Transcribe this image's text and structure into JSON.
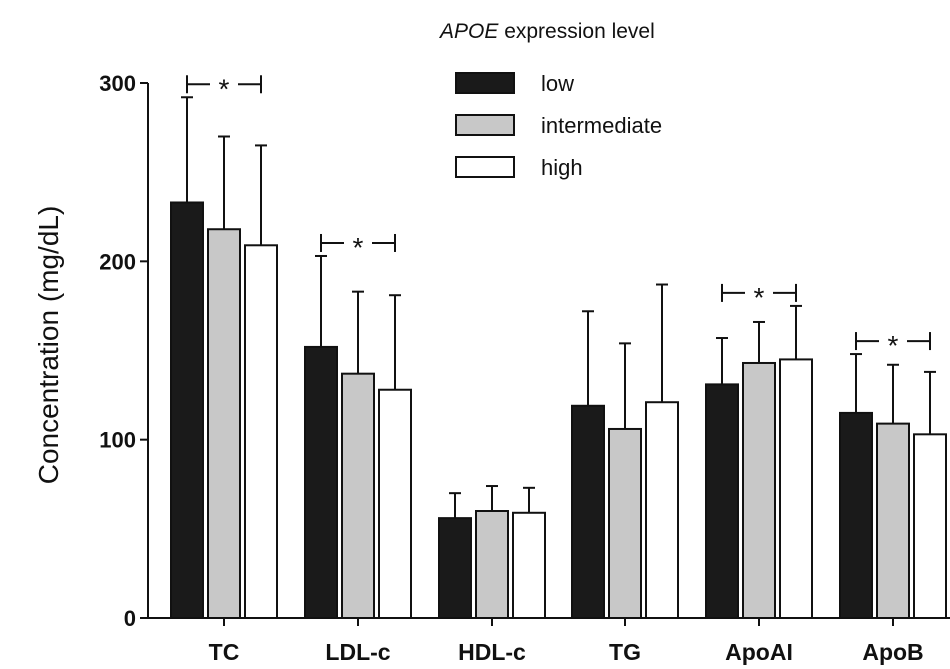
{
  "chart_data": {
    "type": "bar",
    "ylabel": "Concentration (mg/dL)",
    "ylim": [
      0,
      300
    ],
    "yticks": [
      0,
      100,
      200,
      300
    ],
    "grid": false,
    "legend": {
      "title_italic": "APOE",
      "title_rest": " expression level",
      "placement": "top-center"
    },
    "categories": [
      "TC",
      "LDL-c",
      "HDL-c",
      "TG",
      "ApoAI",
      "ApoB"
    ],
    "series": [
      {
        "name": "low",
        "color": "#1a1a1a",
        "values": [
          233,
          152,
          56,
          119,
          131,
          115
        ],
        "errors": [
          59,
          51,
          14,
          53,
          26,
          33
        ]
      },
      {
        "name": "intermediate",
        "color": "#c8c8c8",
        "values": [
          218,
          137,
          60,
          106,
          143,
          109
        ],
        "errors": [
          52,
          46,
          14,
          48,
          23,
          33
        ]
      },
      {
        "name": "high",
        "color": "#ffffff",
        "values": [
          209,
          128,
          59,
          121,
          145,
          103
        ],
        "errors": [
          56,
          53,
          14,
          66,
          30,
          35
        ]
      }
    ],
    "significance": [
      {
        "category": "TC",
        "label": "*"
      },
      {
        "category": "LDL-c",
        "label": "*"
      },
      {
        "category": "ApoAI",
        "label": "*"
      },
      {
        "category": "ApoB",
        "label": "*"
      }
    ]
  }
}
